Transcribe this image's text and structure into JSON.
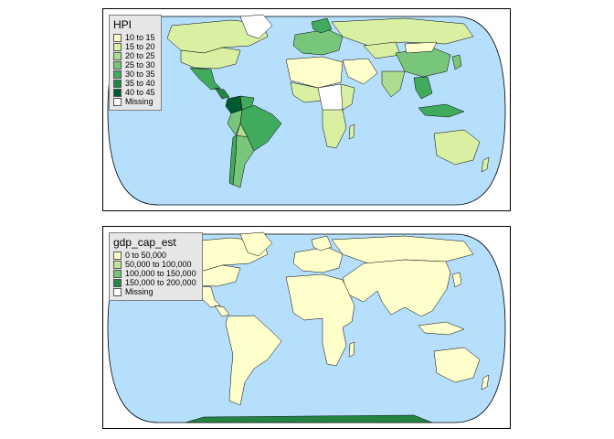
{
  "maps": [
    {
      "legend": {
        "title": "HPI",
        "items": [
          {
            "label": "10 to 15",
            "color": "#ffffcc"
          },
          {
            "label": "15 to 20",
            "color": "#d9f0a3"
          },
          {
            "label": "20 to 25",
            "color": "#addd8e"
          },
          {
            "label": "25 to 30",
            "color": "#78c679"
          },
          {
            "label": "30 to 35",
            "color": "#41ab5d"
          },
          {
            "label": "35 to 40",
            "color": "#238443"
          },
          {
            "label": "40 to 45",
            "color": "#005a32"
          },
          {
            "label": "Missing",
            "color": "#ffffff"
          }
        ]
      }
    },
    {
      "legend": {
        "title": "gdp_cap_est",
        "items": [
          {
            "label": "0 to 50,000",
            "color": "#ffffcc"
          },
          {
            "label": "50,000 to 100,000",
            "color": "#c2e699"
          },
          {
            "label": "100,000 to 150,000",
            "color": "#78c679"
          },
          {
            "label": "150,000 to 200,000",
            "color": "#238443"
          },
          {
            "label": "Missing",
            "color": "#ffffff"
          }
        ]
      }
    }
  ],
  "colors": {
    "ocean": "#b5dffd",
    "border": "#000000"
  }
}
